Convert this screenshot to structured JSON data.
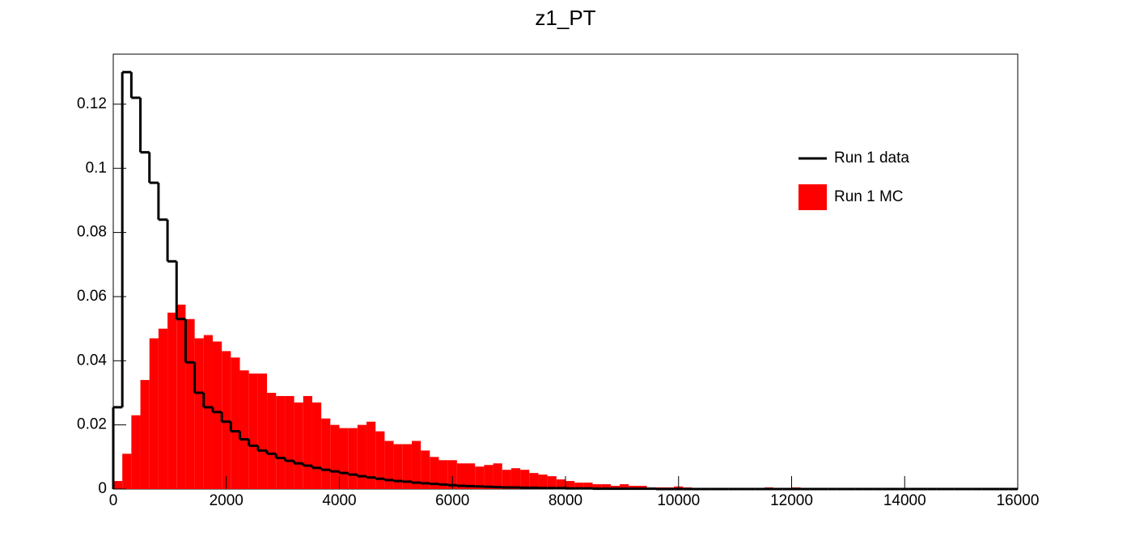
{
  "chart_data": {
    "type": "histogram",
    "title": "z1_PT",
    "bins": [
      0,
      160,
      320,
      480,
      640,
      800,
      960,
      1120,
      1280,
      1440,
      1600,
      1760,
      1920,
      2080,
      2240,
      2400,
      2560,
      2720,
      2880,
      3040,
      3200,
      3360,
      3520,
      3680,
      3840,
      4000,
      4160,
      4320,
      4480,
      4640,
      4800,
      4960,
      5120,
      5280,
      5440,
      5600,
      5760,
      5920,
      6080,
      6240,
      6400,
      6560,
      6720,
      6880,
      7040,
      7200,
      7360,
      7520,
      7680,
      7840,
      8000,
      8160,
      8320,
      8480,
      8640,
      8800,
      8960,
      9120,
      9280,
      9440,
      9600,
      9760,
      9920,
      10080,
      10240,
      10400,
      10560,
      10720,
      10880,
      11040,
      11200,
      11360,
      11520,
      11680,
      11840,
      12000,
      12160,
      12320,
      12480,
      12640,
      12800,
      12960,
      13120,
      13280,
      13440,
      13600,
      13760,
      13920,
      14080,
      14240,
      14400,
      14560,
      14720,
      14880,
      15040,
      15200,
      15360,
      15520,
      15680,
      15840,
      16000
    ],
    "series": [
      {
        "name": "Run 1 data",
        "color": "#000000",
        "style": "line",
        "values": [
          0.0255,
          0.13,
          0.122,
          0.105,
          0.0955,
          0.084,
          0.071,
          0.053,
          0.0395,
          0.03,
          0.0255,
          0.024,
          0.021,
          0.018,
          0.0155,
          0.0135,
          0.012,
          0.011,
          0.0097,
          0.0088,
          0.008,
          0.0073,
          0.0066,
          0.006,
          0.0055,
          0.005,
          0.0045,
          0.004,
          0.0036,
          0.0032,
          0.0028,
          0.0025,
          0.0023,
          0.002,
          0.0018,
          0.0016,
          0.0014,
          0.0012,
          0.001,
          0.0009,
          0.0008,
          0.0007,
          0.0006,
          0.0005,
          0.0005,
          0.0004,
          0.0004,
          0.0003,
          0.0003,
          0.0003,
          0.0002,
          0.0002,
          0.0002,
          0.0001,
          0.0001,
          0.0001,
          0.0001,
          0.0001,
          0.0001,
          0.0001,
          0,
          0,
          0,
          0,
          0,
          0,
          0,
          0,
          0,
          0,
          0,
          0,
          0,
          0,
          0,
          0,
          0,
          0,
          0,
          0,
          0,
          0,
          0,
          0,
          0,
          0,
          0,
          0,
          0,
          0,
          0,
          0,
          0,
          0,
          0,
          0,
          0,
          0,
          0,
          0
        ]
      },
      {
        "name": "Run 1 MC",
        "color": "#ff0000",
        "style": "fill",
        "values": [
          0.0025,
          0.011,
          0.023,
          0.034,
          0.047,
          0.05,
          0.055,
          0.0575,
          0.053,
          0.047,
          0.048,
          0.046,
          0.043,
          0.041,
          0.037,
          0.036,
          0.036,
          0.03,
          0.029,
          0.029,
          0.027,
          0.029,
          0.027,
          0.022,
          0.02,
          0.019,
          0.019,
          0.02,
          0.021,
          0.018,
          0.015,
          0.014,
          0.014,
          0.015,
          0.012,
          0.01,
          0.009,
          0.009,
          0.008,
          0.008,
          0.007,
          0.0075,
          0.008,
          0.006,
          0.0065,
          0.006,
          0.005,
          0.0045,
          0.004,
          0.003,
          0.0025,
          0.002,
          0.002,
          0.0015,
          0.0015,
          0.001,
          0.0015,
          0.001,
          0.001,
          0.0005,
          0.0005,
          0.0005,
          0.0008,
          0.0005,
          0.0003,
          0.0003,
          0.0003,
          0.0002,
          0.0002,
          0.0002,
          0.0002,
          0.0003,
          0.0005,
          0.0003,
          0.0002,
          0.0005,
          0.0002,
          0.0001,
          0.0001,
          0.0001,
          0,
          0,
          0,
          0,
          0,
          0,
          0,
          0,
          0,
          0,
          0,
          0,
          0,
          0,
          0,
          0,
          0,
          0,
          0,
          0
        ]
      }
    ],
    "xlim": [
      0,
      16000
    ],
    "xticks": [
      0,
      2000,
      4000,
      6000,
      8000,
      10000,
      12000,
      14000,
      16000
    ],
    "ylim": [
      0,
      0.1356
    ],
    "yticks": [
      0,
      0.02,
      0.04,
      0.06,
      0.08,
      0.1,
      0.12
    ],
    "legend": "top-right"
  }
}
